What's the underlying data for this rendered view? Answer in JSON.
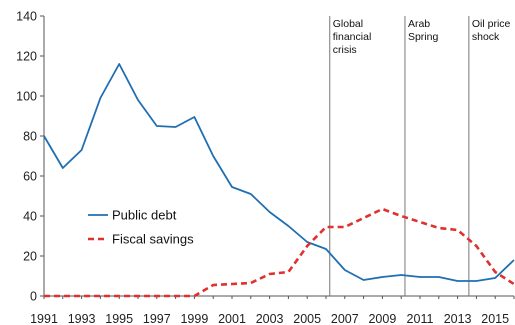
{
  "chart_data": {
    "type": "line",
    "title": "",
    "xlabel": "",
    "ylabel": "",
    "ylim": [
      0,
      140
    ],
    "yticks": [
      0,
      20,
      40,
      60,
      80,
      100,
      120,
      140
    ],
    "xlim": [
      1991,
      2016
    ],
    "xticks": [
      1991,
      1993,
      1995,
      1997,
      1999,
      2001,
      2003,
      2005,
      2007,
      2009,
      2011,
      2013,
      2015
    ],
    "grid": false,
    "legend_position": "center-left",
    "series": [
      {
        "name": "Public debt",
        "color": "#1f6fb2",
        "style": "solid",
        "x": [
          1991,
          1992,
          1993,
          1994,
          1995,
          1996,
          1997,
          1998,
          1999,
          2000,
          2001,
          2002,
          2003,
          2004,
          2005,
          2006,
          2007,
          2008,
          2009,
          2010,
          2011,
          2012,
          2013,
          2014,
          2015,
          2016
        ],
        "values": [
          80,
          64,
          73,
          99,
          116,
          98,
          85,
          84.5,
          89.5,
          70,
          54.5,
          51,
          42,
          35,
          27,
          23.5,
          13,
          8,
          9.5,
          10.5,
          9.5,
          9.5,
          7.5,
          7.5,
          9,
          18
        ]
      },
      {
        "name": "Fiscal savings",
        "color": "#e03030",
        "style": "dashed",
        "x": [
          1991,
          1992,
          1993,
          1994,
          1995,
          1996,
          1997,
          1998,
          1999,
          2000,
          2001,
          2002,
          2003,
          2004,
          2005,
          2006,
          2007,
          2008,
          2009,
          2010,
          2011,
          2012,
          2013,
          2014,
          2015,
          2016
        ],
        "values": [
          0,
          0,
          0,
          0,
          0,
          0,
          0,
          0,
          0,
          5.5,
          6,
          6.5,
          11,
          12,
          25,
          34.5,
          34.5,
          39,
          43.5,
          40,
          37,
          34,
          33,
          25,
          12,
          6
        ]
      }
    ],
    "annotations": [
      {
        "x": 2006.2,
        "lines": [
          "Global",
          "financial",
          "crisis"
        ]
      },
      {
        "x": 2010.2,
        "lines": [
          "Arab",
          "Spring"
        ]
      },
      {
        "x": 2013.6,
        "lines": [
          "Oil price",
          "shock"
        ]
      }
    ]
  }
}
